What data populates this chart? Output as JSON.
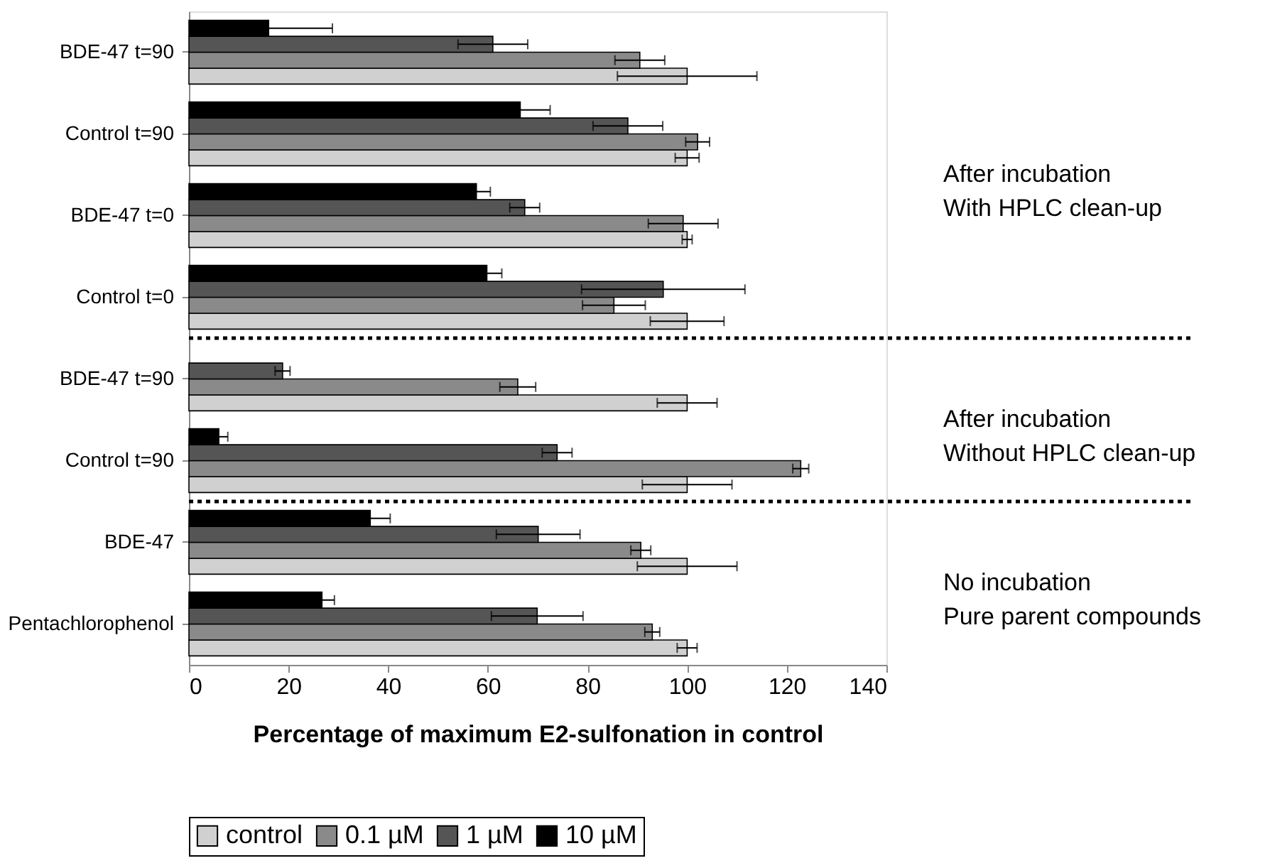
{
  "chart_data": {
    "type": "bar",
    "orientation": "horizontal",
    "categories": [
      "BDE-47 t=90",
      "Control t=90",
      "BDE-47 t=0",
      "Control t=0",
      "BDE-47 t=90",
      "Control t=90",
      "BDE-47",
      "Pentachlorophenol"
    ],
    "series": [
      {
        "name": "control",
        "color": "#d0d0d0",
        "values": [
          100,
          100,
          100,
          100,
          100,
          100,
          100,
          100
        ],
        "errors": [
          14,
          2.4,
          1,
          7.4,
          6,
          9,
          10,
          2
        ]
      },
      {
        "name": "0.1 µM",
        "color": "#8a8a8a",
        "values": [
          90.5,
          102.1,
          99.2,
          85.3,
          66,
          122.8,
          90.7,
          93
        ],
        "errors": [
          5,
          2.4,
          7,
          6.3,
          3.6,
          1.6,
          2,
          1.5
        ]
      },
      {
        "name": "1 µM",
        "color": "#555555",
        "values": [
          61,
          88.1,
          67.4,
          95.2,
          18.8,
          73.9,
          70.1,
          69.9
        ],
        "errors": [
          7,
          7,
          3,
          16.4,
          1.5,
          3,
          8.4,
          9.2
        ]
      },
      {
        "name": "10 µM",
        "color": "#000000",
        "values": [
          16,
          66.5,
          57.7,
          59.8,
          null,
          6,
          36.4,
          26.7
        ],
        "errors": [
          12.8,
          6,
          2.8,
          3,
          null,
          1.8,
          4,
          2.5
        ]
      }
    ],
    "xlim": [
      0,
      140
    ],
    "xticks": [
      0,
      20,
      40,
      60,
      80,
      100,
      120,
      140
    ],
    "xlabel": "Percentage of maximum E2-sulfonation in control",
    "annotations": [
      "After incubation\nWith HPLC clean-up",
      "After incubation\nWithout HPLC clean-up",
      "No incubation\nPure parent compounds"
    ],
    "legend": "bottom",
    "grid": false
  }
}
